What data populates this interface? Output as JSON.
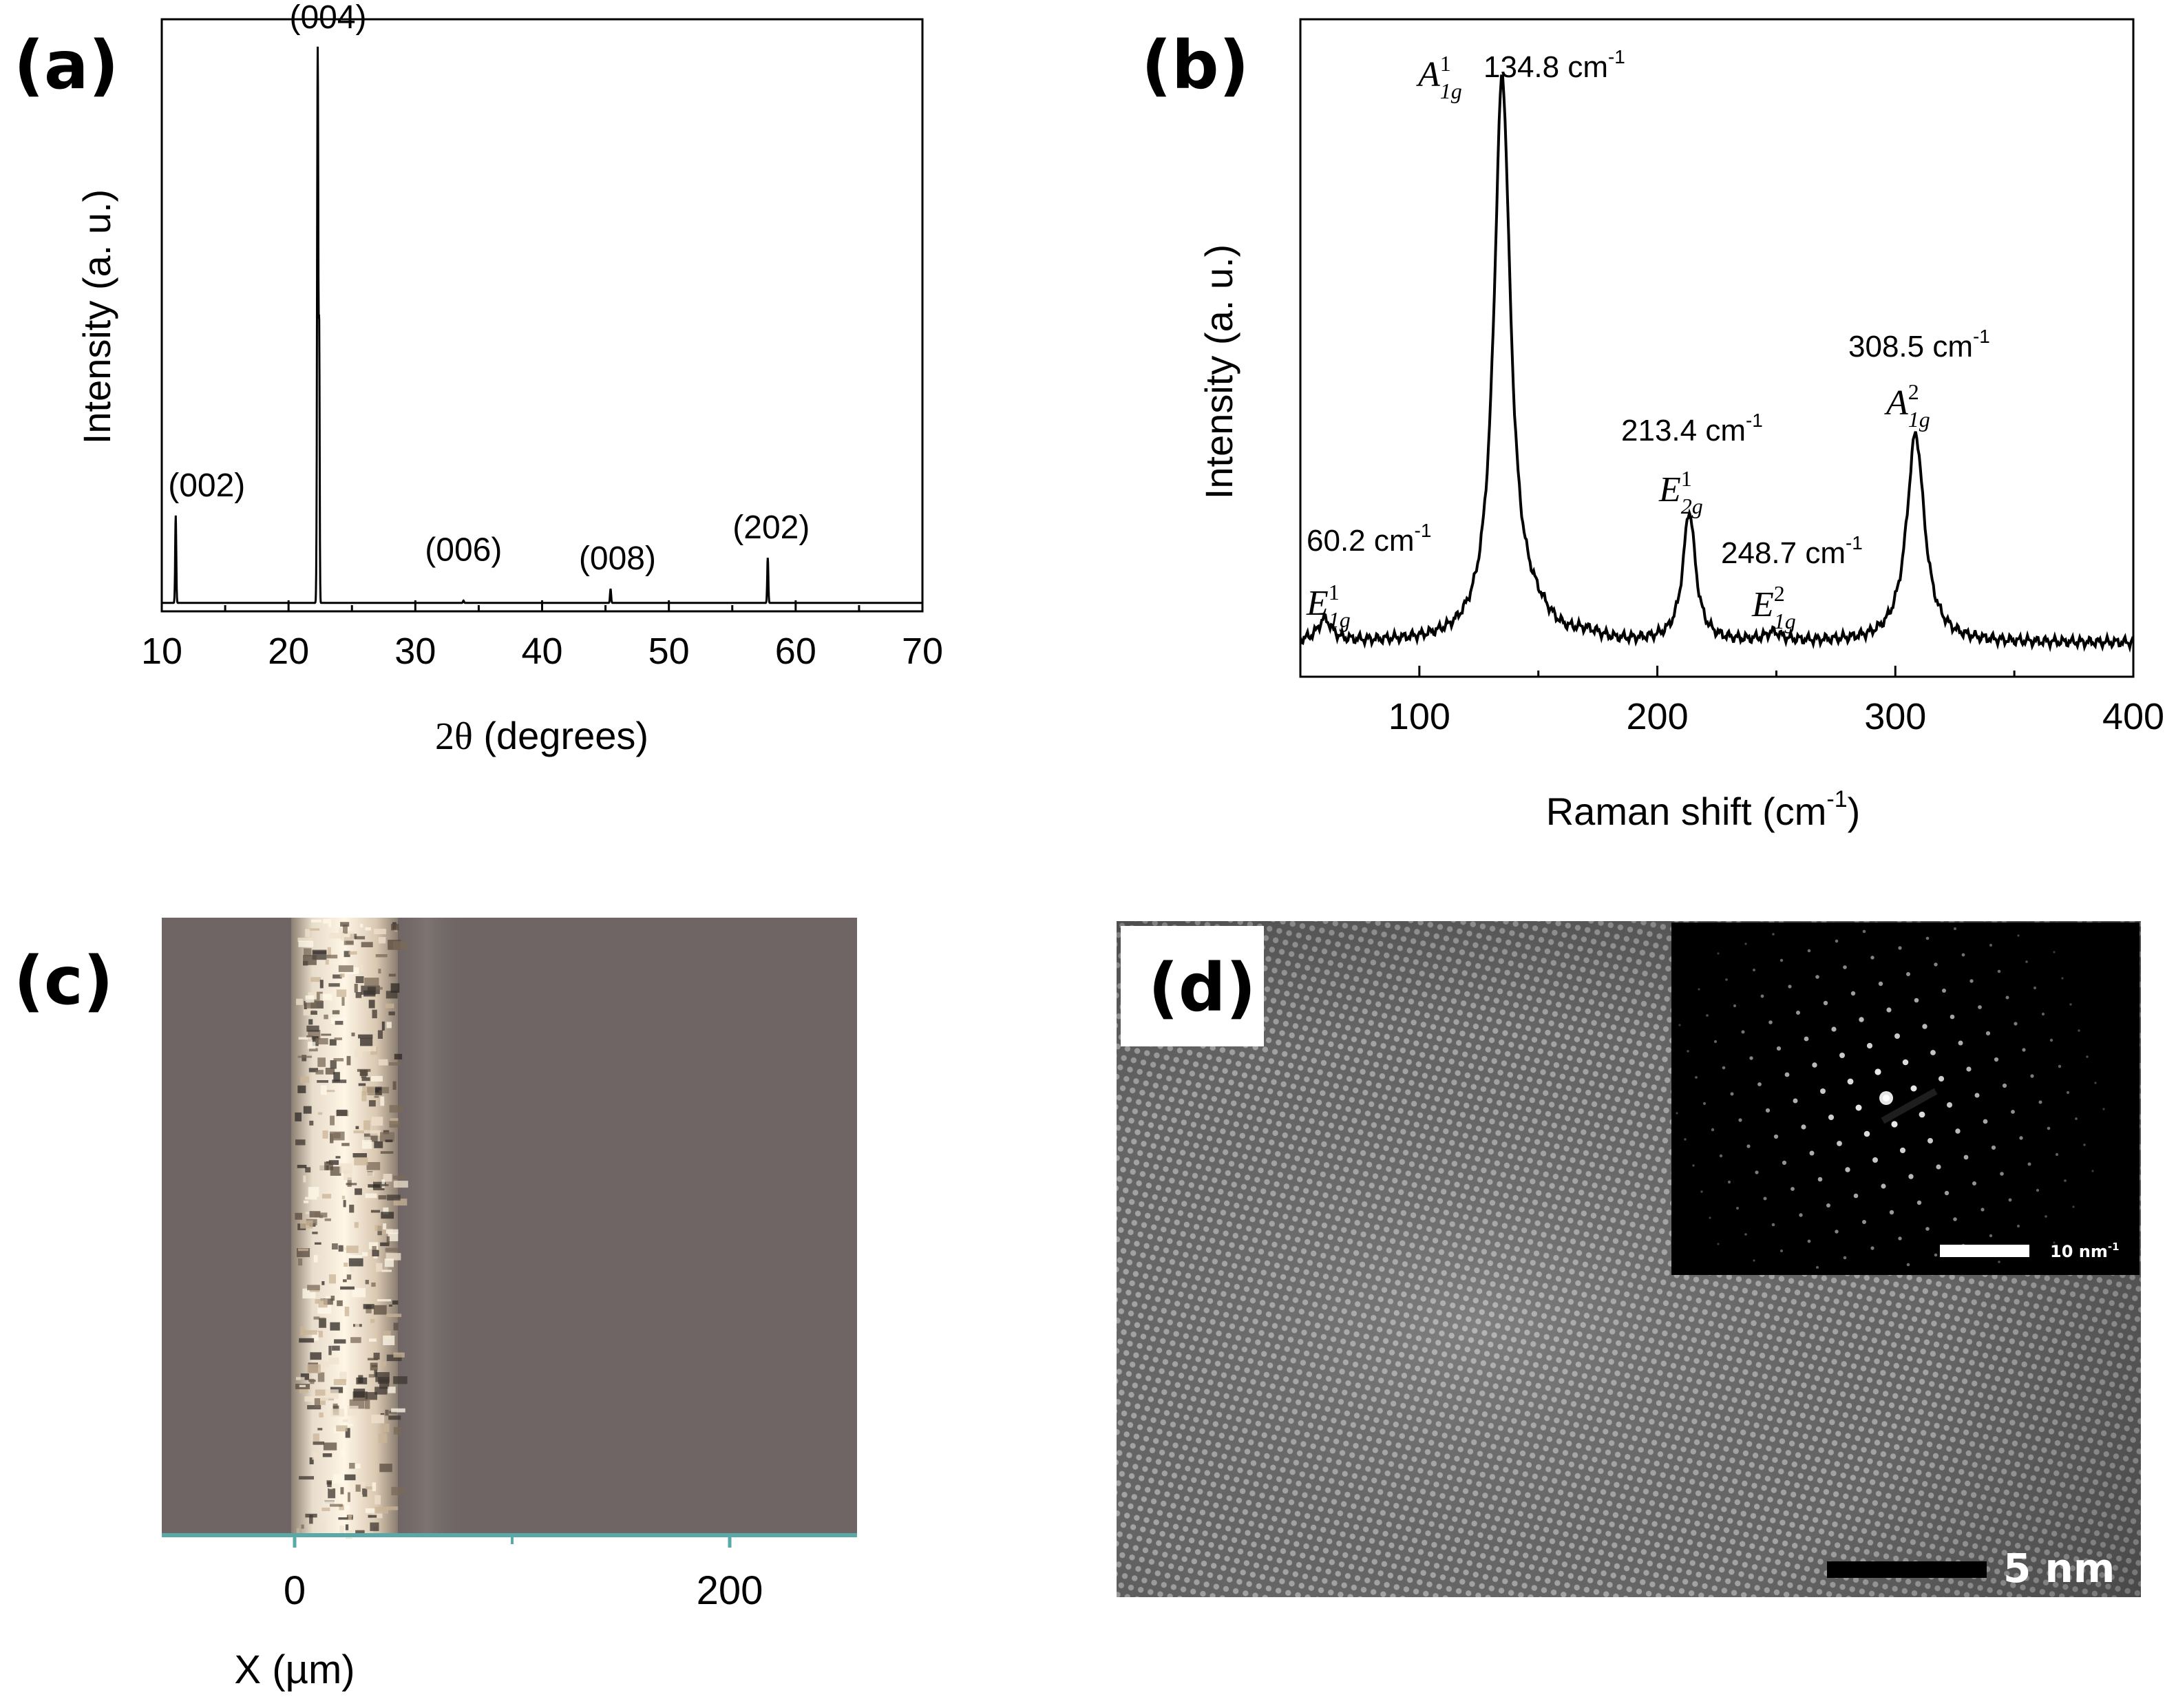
{
  "panels": {
    "a": {
      "label": "(a)"
    },
    "b": {
      "label": "(b)"
    },
    "c": {
      "label": "(c)"
    },
    "d": {
      "label": "(d)"
    }
  },
  "chart_data": [
    {
      "panel": "a",
      "type": "line",
      "xlabel_symbol": "2θ",
      "xlabel_text": "(degrees)",
      "ylabel": "Intensity (a. u.)",
      "xlim": [
        10,
        70
      ],
      "xticks": [
        10,
        20,
        30,
        40,
        50,
        60,
        70
      ],
      "yticks": [],
      "baseline": 1.5,
      "peaks": [
        {
          "label": "(002)",
          "x": 11.1,
          "y": 17
        },
        {
          "label": "(004)",
          "x": 22.3,
          "y": 100
        },
        {
          "label": "(006)",
          "x": 33.8,
          "y": 1.9
        },
        {
          "label": "(008)",
          "x": 45.4,
          "y": 4
        },
        {
          "label": "(202)",
          "x": 57.8,
          "y": 9.5
        }
      ],
      "ylim": [
        0,
        105
      ]
    },
    {
      "panel": "b",
      "type": "line",
      "xlabel": "Raman shift (cm",
      "xlabel_sup": "-1",
      "xlabel_end": ")",
      "ylabel": "Intensity (a. u.)",
      "xlim": [
        50,
        400
      ],
      "xticks": [
        100,
        200,
        300,
        400
      ],
      "ylim": [
        0,
        105
      ],
      "peaks": [
        {
          "shift": "60.2 cm",
          "sup": "-1",
          "mode": "E",
          "mode_sub": "1g",
          "mode_sup": "1",
          "x": 60.2,
          "y": 4
        },
        {
          "shift": "134.8 cm",
          "sup": "-1",
          "mode": "A",
          "mode_sub": "1g",
          "mode_sup": "1",
          "x": 134.8,
          "y": 100
        },
        {
          "shift": "213.4 cm",
          "sup": "-1",
          "mode": "E",
          "mode_sub": "2g",
          "mode_sup": "1",
          "x": 213.4,
          "y": 23
        },
        {
          "shift": "248.7 cm",
          "sup": "-1",
          "mode": "E",
          "mode_sub": "1g",
          "mode_sup": "2",
          "x": 248.7,
          "y": 1.5
        },
        {
          "shift": "308.5 cm",
          "sup": "-1",
          "mode": "A",
          "mode_sub": "1g",
          "mode_sup": "2",
          "x": 308.5,
          "y": 37
        }
      ]
    }
  ],
  "image_c": {
    "xlabel": "X (µm)",
    "xticks": [
      0,
      200
    ],
    "axis_color": "#5aa8a8",
    "background_color": "#6e6564"
  },
  "image_d": {
    "scalebar_label": "5 nm",
    "inset_scalebar_label": "10 nm",
    "inset_scalebar_sup": "-1"
  }
}
